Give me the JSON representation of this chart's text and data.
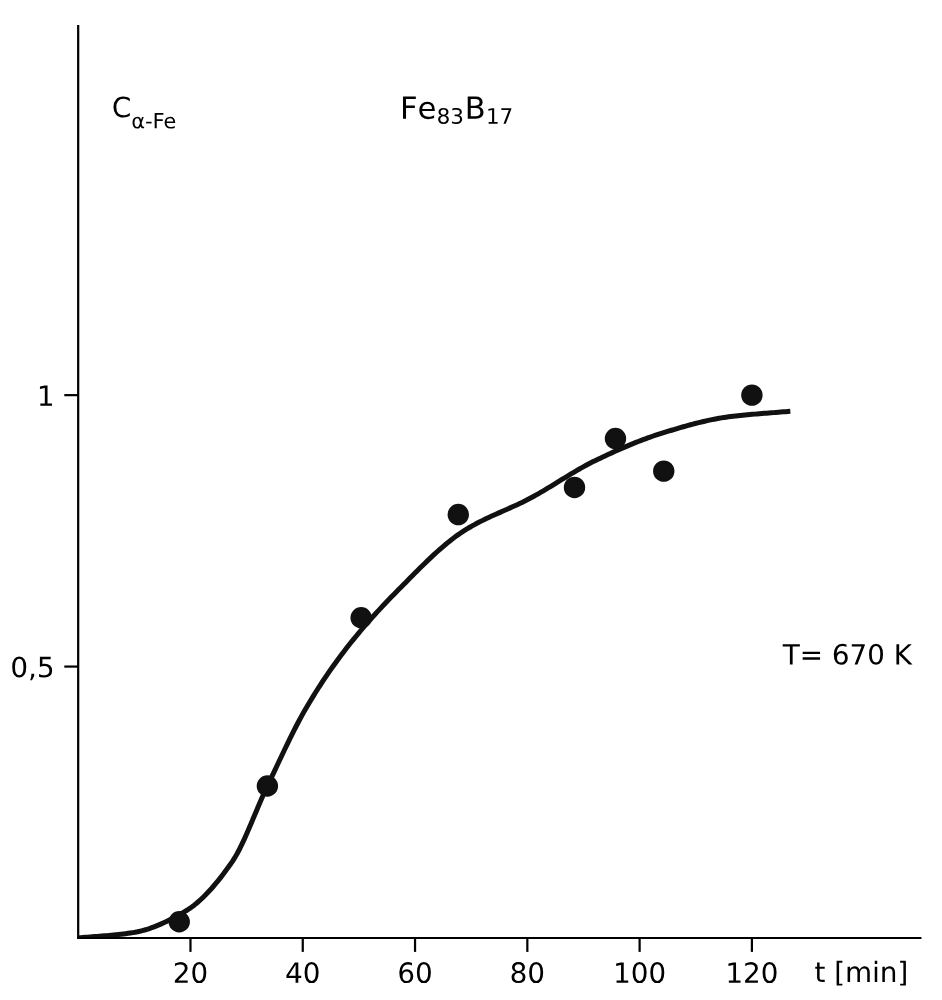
{
  "chart_data": {
    "type": "scatter",
    "title": "Fe$_{83}$B$_{17}$",
    "xlabel": "t [min]",
    "ylabel": "C$_{α-Fe}$",
    "annotations": [
      "T= 670 K"
    ],
    "xlim": [
      0,
      150
    ],
    "ylim": [
      0,
      1.68
    ],
    "xticks": [
      20,
      40,
      60,
      80,
      100,
      120
    ],
    "yticks": [
      {
        "value": 0.5,
        "label": "0,5"
      },
      {
        "value": 1,
        "label": "1"
      }
    ],
    "grid": false,
    "legend": false,
    "series": [
      {
        "type": "scatter",
        "color": "#111111",
        "marker": "circle",
        "x": [
          18,
          33.7,
          50.4,
          67.7,
          88.4,
          95.7,
          104.3,
          120
        ],
        "values": [
          0.03,
          0.28,
          0.59,
          0.78,
          0.83,
          0.92,
          0.86,
          1.0
        ]
      },
      {
        "type": "line",
        "color": "#111111",
        "marker": "none",
        "line_style": "solid",
        "x": [
          0,
          9.8,
          19.2,
          27.4,
          33.7,
          40.4,
          47.5,
          56.9,
          68.7,
          80.5,
          92.2,
          104,
          115.8,
          126.4
        ],
        "values": [
          0,
          0.01,
          0.05,
          0.14,
          0.28,
          0.42,
          0.53,
          0.64,
          0.75,
          0.81,
          0.88,
          0.93,
          0.96,
          0.97
        ]
      }
    ]
  }
}
